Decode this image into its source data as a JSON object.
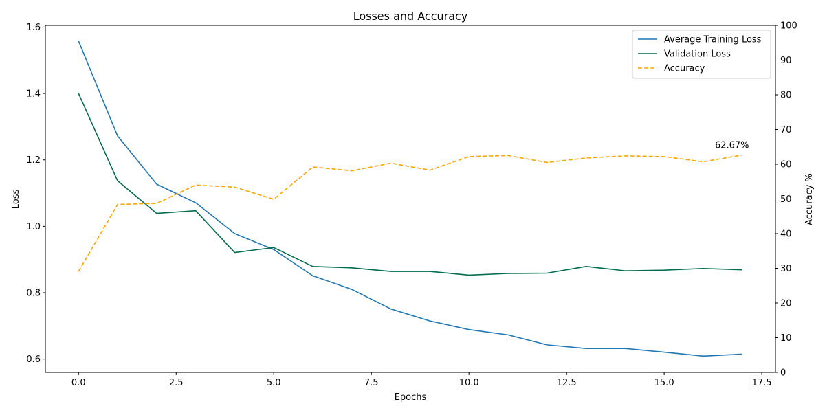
{
  "chart_data": {
    "type": "line",
    "title": "Losses and Accuracy",
    "xlabel": "Epochs",
    "ylabel": "Loss",
    "y2label": "Accuracy %",
    "xlim": [
      -0.85,
      17.85
    ],
    "ylim": [
      0.56,
      1.605
    ],
    "y2lim": [
      0,
      100
    ],
    "xticks": [
      0.0,
      2.5,
      5.0,
      7.5,
      10.0,
      12.5,
      15.0,
      17.5
    ],
    "xtick_labels": [
      "0.0",
      "2.5",
      "5.0",
      "7.5",
      "10.0",
      "12.5",
      "15.0",
      "17.5"
    ],
    "yticks": [
      0.6,
      0.8,
      1.0,
      1.2,
      1.4,
      1.6
    ],
    "ytick_labels": [
      "0.6",
      "0.8",
      "1.0",
      "1.2",
      "1.4",
      "1.6"
    ],
    "y2ticks": [
      0,
      10,
      20,
      30,
      40,
      50,
      60,
      70,
      80,
      90,
      100
    ],
    "y2tick_labels": [
      "0",
      "10",
      "20",
      "30",
      "40",
      "50",
      "60",
      "70",
      "80",
      "90",
      "100"
    ],
    "x": [
      0,
      1,
      2,
      3,
      4,
      5,
      6,
      7,
      8,
      9,
      10,
      11,
      12,
      13,
      14,
      15,
      16,
      17
    ],
    "series": [
      {
        "name": "Average Training Loss",
        "axis": "left",
        "color": "#1f77b4",
        "style": "solid",
        "values": [
          1.558,
          1.272,
          1.127,
          1.071,
          0.978,
          0.93,
          0.851,
          0.81,
          0.751,
          0.715,
          0.689,
          0.673,
          0.643,
          0.632,
          0.632,
          0.621,
          0.609,
          0.615
        ]
      },
      {
        "name": "Validation Loss",
        "axis": "left",
        "color": "#006d4c",
        "style": "solid",
        "values": [
          1.4,
          1.137,
          1.039,
          1.047,
          0.921,
          0.936,
          0.879,
          0.875,
          0.864,
          0.864,
          0.853,
          0.858,
          0.859,
          0.879,
          0.866,
          0.868,
          0.873,
          0.869
        ]
      },
      {
        "name": "Accuracy",
        "axis": "right",
        "color": "#ffa500",
        "style": "dashed",
        "values": [
          29.1,
          48.4,
          48.7,
          54.0,
          53.4,
          49.9,
          59.2,
          58.1,
          60.3,
          58.3,
          62.2,
          62.5,
          60.5,
          61.8,
          62.4,
          62.2,
          60.7,
          62.67
        ]
      }
    ],
    "annotation": {
      "text": "62.67%",
      "x": 17,
      "y": 62.67,
      "axis": "right"
    },
    "legend": {
      "placement": "top-right"
    },
    "grid": false
  }
}
